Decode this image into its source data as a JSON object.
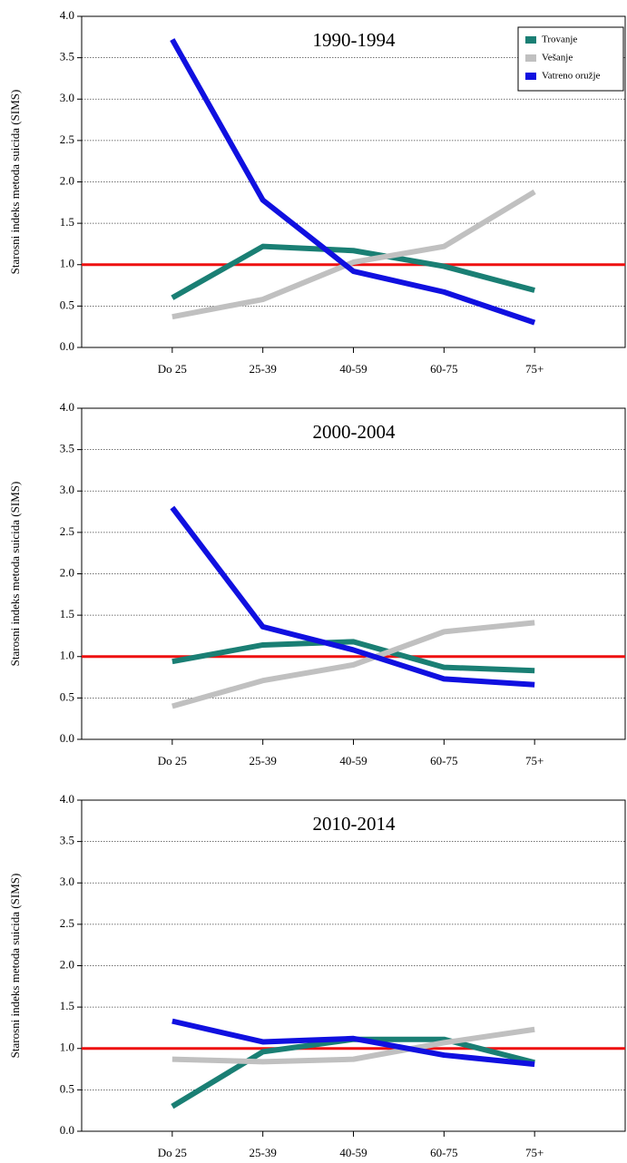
{
  "chart_data": [
    {
      "type": "line",
      "title": "1990-1994",
      "ylabel": "Starosni indeks metoda suicida (SIMS)",
      "categories": [
        "Do 25",
        "25-39",
        "40-59",
        "60-75",
        "75+"
      ],
      "series": [
        {
          "name": "Trovanje",
          "color": "#1a7f74",
          "values": [
            0.6,
            1.22,
            1.17,
            0.98,
            0.69
          ]
        },
        {
          "name": "Vešanje",
          "color": "#c0c0c0",
          "values": [
            0.37,
            0.58,
            1.03,
            1.22,
            1.88
          ]
        },
        {
          "name": "Vatreno oružje",
          "color": "#1010e0",
          "values": [
            3.72,
            1.78,
            0.92,
            0.67,
            0.3
          ]
        }
      ],
      "ylim": [
        0,
        4
      ],
      "yticks": [
        {
          "value": 0,
          "label": "0.0"
        },
        {
          "value": 0.5,
          "label": "0.5"
        },
        {
          "value": 1,
          "label": "1.0"
        },
        {
          "value": 1.5,
          "label": "1.5"
        },
        {
          "value": 2,
          "label": "2.0"
        },
        {
          "value": 2.5,
          "label": "2.5"
        },
        {
          "value": 3,
          "label": "3.0"
        },
        {
          "value": 3.5,
          "label": "3.5"
        },
        {
          "value": 4,
          "label": "4.0"
        }
      ],
      "grid": true,
      "reference_line": 1,
      "reference_color": "#ee1111",
      "legend": "upper right"
    },
    {
      "type": "line",
      "title": "2000-2004",
      "ylabel": "Starosni indeks metoda suicida (SIMS)",
      "categories": [
        "Do 25",
        "25-39",
        "40-59",
        "60-75",
        "75+"
      ],
      "series": [
        {
          "color": "#1a7f74",
          "values": [
            0.94,
            1.14,
            1.18,
            0.87,
            0.83
          ]
        },
        {
          "color": "#c0c0c0",
          "values": [
            0.4,
            0.71,
            0.9,
            1.3,
            1.41
          ]
        },
        {
          "color": "#1010e0",
          "values": [
            2.8,
            1.36,
            1.08,
            0.73,
            0.66
          ]
        }
      ],
      "ylim": [
        0,
        4
      ],
      "yticks": [
        {
          "value": 0,
          "label": "0.0"
        },
        {
          "value": 0.5,
          "label": "0.5"
        },
        {
          "value": 1,
          "label": "1.0"
        },
        {
          "value": 1.5,
          "label": "1.5"
        },
        {
          "value": 2,
          "label": "2.0"
        },
        {
          "value": 2.5,
          "label": "2.5"
        },
        {
          "value": 3,
          "label": "3.0"
        },
        {
          "value": 3.5,
          "label": "3.5"
        },
        {
          "value": 4,
          "label": "4.0"
        }
      ],
      "grid": true,
      "reference_line": 1,
      "reference_color": "#ee1111"
    },
    {
      "type": "line",
      "title": "2010-2014",
      "ylabel": "Starosni indeks metoda suicida (SIMS)",
      "categories": [
        "Do 25",
        "25-39",
        "40-59",
        "60-75",
        "75+"
      ],
      "series": [
        {
          "color": "#1a7f74",
          "values": [
            0.3,
            0.96,
            1.11,
            1.11,
            0.83
          ]
        },
        {
          "color": "#c0c0c0",
          "values": [
            0.87,
            0.84,
            0.87,
            1.07,
            1.23
          ]
        },
        {
          "color": "#1010e0",
          "values": [
            1.33,
            1.08,
            1.12,
            0.92,
            0.81
          ]
        }
      ],
      "ylim": [
        0,
        4
      ],
      "yticks": [
        {
          "value": 0,
          "label": "0.0"
        },
        {
          "value": 0.5,
          "label": "0.5"
        },
        {
          "value": 1,
          "label": "1.0"
        },
        {
          "value": 1.5,
          "label": "1.5"
        },
        {
          "value": 2,
          "label": "2.0"
        },
        {
          "value": 2.5,
          "label": "2.5"
        },
        {
          "value": 3,
          "label": "3.0"
        },
        {
          "value": 3.5,
          "label": "3.5"
        },
        {
          "value": 4,
          "label": "4.0"
        }
      ],
      "grid": true,
      "reference_line": 1,
      "reference_color": "#ee1111"
    }
  ]
}
